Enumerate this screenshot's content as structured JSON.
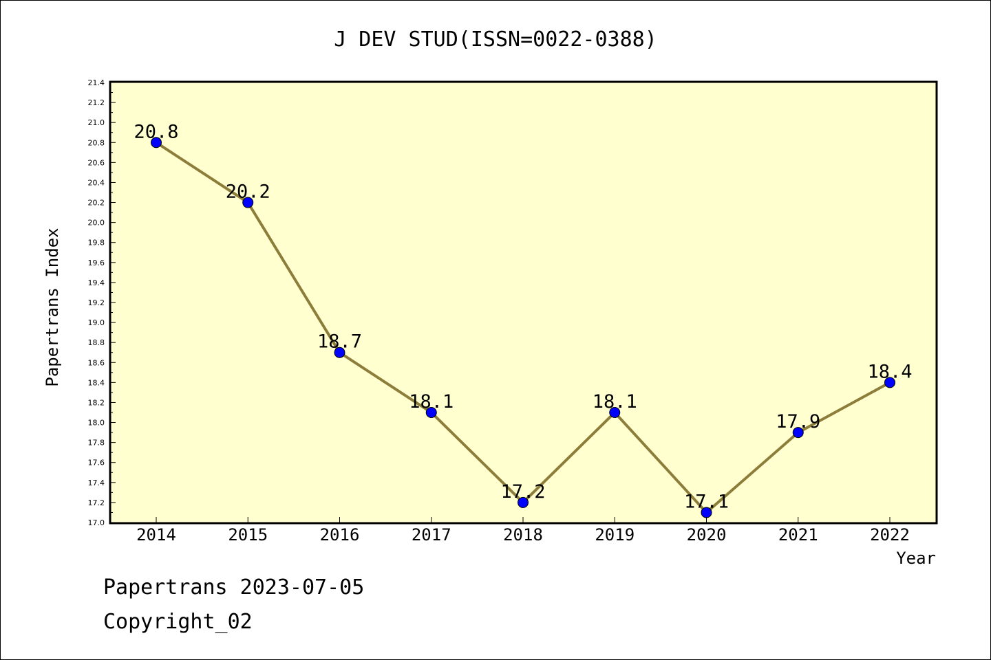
{
  "chart_data": {
    "type": "line",
    "title": "J DEV STUD(ISSN=0022-0388)",
    "xlabel": "Year",
    "ylabel": "Papertrans Index",
    "categories": [
      "2014",
      "2015",
      "2016",
      "2017",
      "2018",
      "2019",
      "2020",
      "2021",
      "2022"
    ],
    "series": [
      {
        "values": [
          20.8,
          20.2,
          18.7,
          18.1,
          17.2,
          18.1,
          17.1,
          17.9,
          18.4
        ]
      }
    ],
    "data_labels": [
      "20.8",
      "20.2",
      "18.7",
      "18.1",
      "17.2",
      "18.1",
      "17.1",
      "17.9",
      "18.4"
    ],
    "ylim": [
      17.0,
      21.4
    ],
    "yticks": [
      "17.0",
      "17.2",
      "17.4",
      "17.6",
      "17.8",
      "18.0",
      "18.2",
      "18.4",
      "18.6",
      "18.8",
      "19.0",
      "19.2",
      "19.4",
      "19.6",
      "19.8",
      "20.0",
      "20.2",
      "20.4",
      "20.6",
      "20.8",
      "21.0",
      "21.2",
      "21.4"
    ],
    "grid": false,
    "colors": {
      "plot_background": "#ffffd0",
      "line": "#8c7d3a",
      "marker": "#0000ff"
    }
  },
  "footer": {
    "line1": "Papertrans 2023-07-05",
    "line2": "Copyright_02"
  }
}
